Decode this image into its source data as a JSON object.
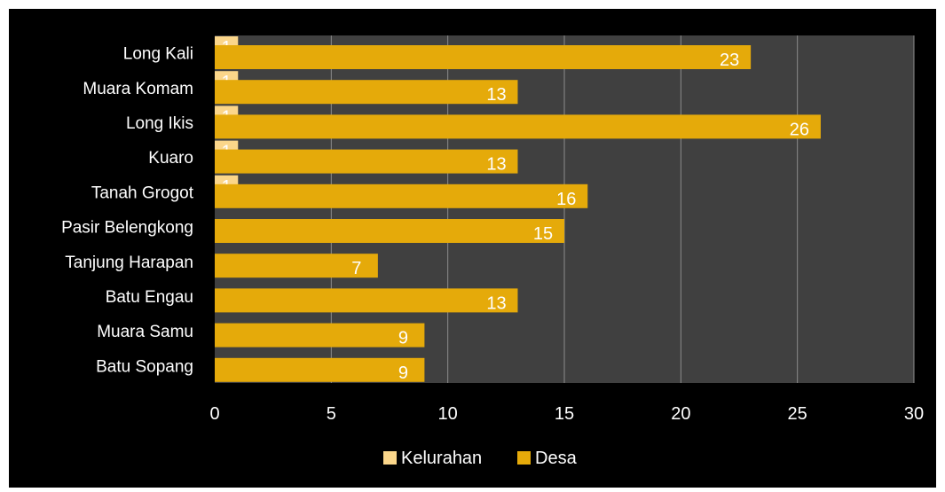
{
  "chart_data": {
    "type": "bar",
    "orientation": "horizontal",
    "stacked": false,
    "categories": [
      "Long Kali",
      "Muara Komam",
      "Long Ikis",
      "Kuaro",
      "Tanah Grogot",
      "Pasir Belengkong",
      "Tanjung Harapan",
      "Batu Engau",
      "Muara Samu",
      "Batu Sopang"
    ],
    "series": [
      {
        "name": "Kelurahan",
        "values": [
          1,
          1,
          1,
          1,
          1,
          null,
          null,
          null,
          null,
          null
        ],
        "color": "#FBD68A"
      },
      {
        "name": "Desa",
        "values": [
          23,
          13,
          26,
          13,
          16,
          15,
          7,
          13,
          9,
          9
        ],
        "color": "#E5AA0A"
      }
    ],
    "xlim": [
      0,
      30
    ],
    "xticks": [
      "0",
      "5",
      "10",
      "15",
      "20",
      "25",
      "30"
    ],
    "grid": true,
    "legend": "bottom",
    "plot_background": "#404040",
    "background": "#000000",
    "gridline_color": "#8c8c8c"
  }
}
